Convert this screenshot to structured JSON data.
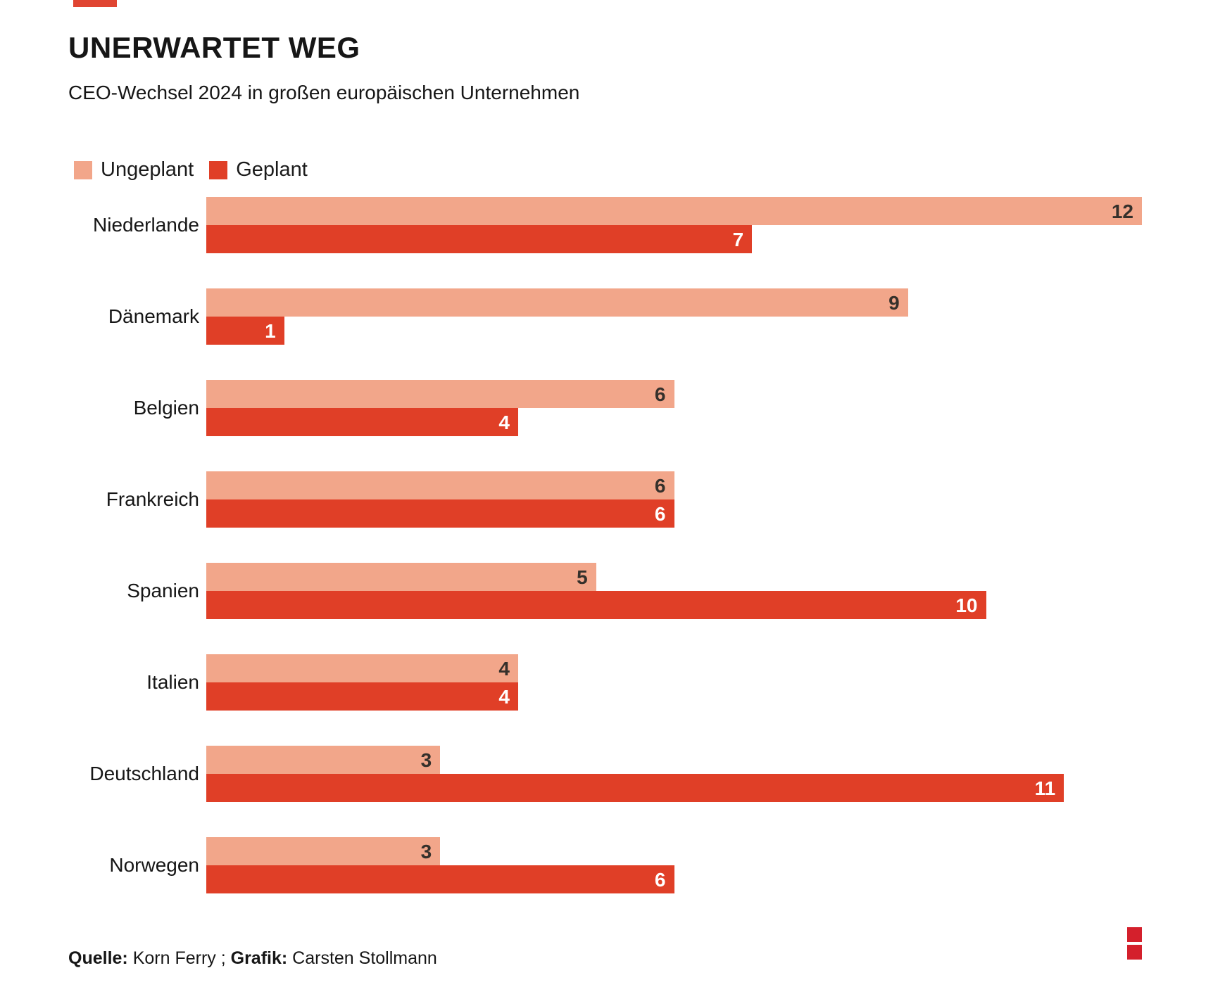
{
  "header": {
    "title": "UNERWARTET WEG",
    "subtitle": "CEO-Wechsel 2024 in großen europäischen Unternehmen"
  },
  "legend": [
    {
      "label": "Ungeplant",
      "color": "#f2a68a"
    },
    {
      "label": "Geplant",
      "color": "#e03f27"
    }
  ],
  "chart_data": {
    "type": "bar",
    "orientation": "horizontal",
    "title": "UNERWARTET WEG",
    "subtitle": "CEO-Wechsel 2024 in großen europäischen Unternehmen",
    "categories": [
      "Niederlande",
      "Dänemark",
      "Belgien",
      "Frankreich",
      "Spanien",
      "Italien",
      "Deutschland",
      "Norwegen"
    ],
    "series": [
      {
        "name": "Ungeplant",
        "color": "#f2a68a",
        "values": [
          12,
          9,
          6,
          6,
          5,
          4,
          3,
          3
        ]
      },
      {
        "name": "Geplant",
        "color": "#e03f27",
        "values": [
          7,
          1,
          4,
          6,
          10,
          4,
          11,
          6
        ]
      }
    ],
    "xlim": [
      0,
      12
    ],
    "xlabel": "",
    "ylabel": "",
    "grid": false,
    "value_labels": "inside-bar-end",
    "legend_position": "top-left"
  },
  "footer": {
    "source_label": "Quelle:",
    "source_value": " Korn Ferry ; ",
    "credit_label": "Grafik:",
    "credit_value": " Carsten Stollmann"
  },
  "colors": {
    "ungeplant": "#f2a68a",
    "geplant": "#e03f27",
    "accent_dash": "#e04532",
    "logo_red": "#d4202c",
    "value_on_light": "#35302b",
    "value_on_dark": "#ffffff",
    "text": "#161616"
  }
}
